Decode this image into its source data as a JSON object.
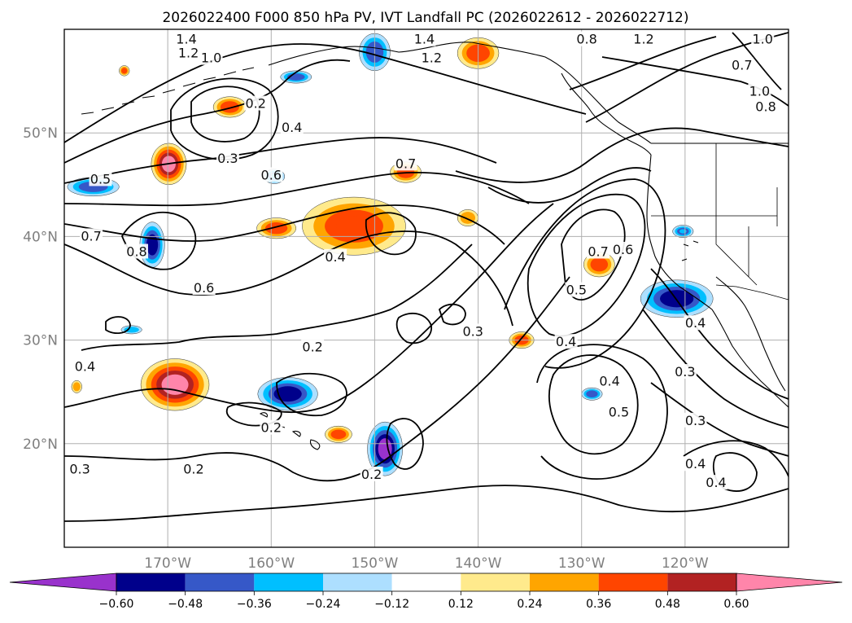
{
  "title": "2026022400 F000 850 hPa PV, IVT Landfall PC (2026022612 - 2026022712)",
  "map": {
    "lon_range": [
      -180,
      -110
    ],
    "lat_range": [
      10,
      60
    ],
    "lon_ticks": [
      {
        "value": -170,
        "label": "170°W"
      },
      {
        "value": -160,
        "label": "160°W"
      },
      {
        "value": -150,
        "label": "150°W"
      },
      {
        "value": -140,
        "label": "140°W"
      },
      {
        "value": -130,
        "label": "130°W"
      },
      {
        "value": -120,
        "label": "120°W"
      }
    ],
    "lat_ticks": [
      {
        "value": 20,
        "label": "20°N"
      },
      {
        "value": 30,
        "label": "30°N"
      },
      {
        "value": 40,
        "label": "40°N"
      },
      {
        "value": 50,
        "label": "50°N"
      }
    ],
    "gridlines": true,
    "colors": {
      "land_lines": "#000000",
      "contours": "#000000",
      "grid": "#b0b0b0"
    }
  },
  "contour_labels": [
    {
      "text": "1.4",
      "lon": -168.2,
      "lat": 59.0
    },
    {
      "text": "1.2",
      "lon": -168.0,
      "lat": 57.7
    },
    {
      "text": "1.0",
      "lon": -165.8,
      "lat": 57.2
    },
    {
      "text": "0.2",
      "lon": -161.5,
      "lat": 52.8
    },
    {
      "text": "0.4",
      "lon": -158.0,
      "lat": 50.5
    },
    {
      "text": "0.3",
      "lon": -164.2,
      "lat": 47.5
    },
    {
      "text": "0.6",
      "lon": -160.0,
      "lat": 45.9
    },
    {
      "text": "0.5",
      "lon": -176.5,
      "lat": 45.5
    },
    {
      "text": "0.7",
      "lon": -177.4,
      "lat": 40.0
    },
    {
      "text": "0.8",
      "lon": -173.0,
      "lat": 38.5
    },
    {
      "text": "0.6",
      "lon": -166.5,
      "lat": 35.0
    },
    {
      "text": "0.7",
      "lon": -147.0,
      "lat": 47.0
    },
    {
      "text": "0.4",
      "lon": -153.8,
      "lat": 38.0
    },
    {
      "text": "1.4",
      "lon": -145.2,
      "lat": 59.0
    },
    {
      "text": "1.2",
      "lon": -144.5,
      "lat": 57.2
    },
    {
      "text": "0.8",
      "lon": -129.5,
      "lat": 59.0
    },
    {
      "text": "1.2",
      "lon": -124.0,
      "lat": 59.0
    },
    {
      "text": "1.0",
      "lon": -112.5,
      "lat": 59.0
    },
    {
      "text": "0.7",
      "lon": -114.5,
      "lat": 56.5
    },
    {
      "text": "1.0",
      "lon": -112.8,
      "lat": 54.0
    },
    {
      "text": "0.8",
      "lon": -112.2,
      "lat": 52.5
    },
    {
      "text": "0.3",
      "lon": -140.5,
      "lat": 30.8
    },
    {
      "text": "0.2",
      "lon": -156.0,
      "lat": 29.3
    },
    {
      "text": "0.4",
      "lon": -131.5,
      "lat": 29.8
    },
    {
      "text": "0.5",
      "lon": -130.5,
      "lat": 34.8
    },
    {
      "text": "0.7",
      "lon": -128.4,
      "lat": 38.5
    },
    {
      "text": "0.6",
      "lon": -126.0,
      "lat": 38.7
    },
    {
      "text": "0.4",
      "lon": -119.0,
      "lat": 31.6
    },
    {
      "text": "0.3",
      "lon": -120.0,
      "lat": 26.9
    },
    {
      "text": "0.4",
      "lon": -127.3,
      "lat": 26.0
    },
    {
      "text": "0.5",
      "lon": -126.4,
      "lat": 23.0
    },
    {
      "text": "0.3",
      "lon": -119.0,
      "lat": 22.2
    },
    {
      "text": "0.4",
      "lon": -178.0,
      "lat": 27.4
    },
    {
      "text": "0.2",
      "lon": -160.0,
      "lat": 21.5
    },
    {
      "text": "0.2",
      "lon": -167.5,
      "lat": 17.5
    },
    {
      "text": "0.3",
      "lon": -178.5,
      "lat": 17.5
    },
    {
      "text": "0.2",
      "lon": -150.3,
      "lat": 17.0
    },
    {
      "text": "0.4",
      "lon": -119.0,
      "lat": 18.0
    },
    {
      "text": "0.4",
      "lon": -117.0,
      "lat": 16.2
    }
  ],
  "shaded_regions": [
    {
      "lon": -169.9,
      "lat": 47.0,
      "rx": 1.7,
      "ry": 2.0,
      "value": 0.62
    },
    {
      "lon": -164.0,
      "lat": 52.5,
      "rx": 1.6,
      "ry": 1.0,
      "value": 0.4
    },
    {
      "lon": -152.0,
      "lat": 41.0,
      "rx": 5.0,
      "ry": 2.8,
      "value": 0.47
    },
    {
      "lon": -147.0,
      "lat": 46.2,
      "rx": 1.5,
      "ry": 1.0,
      "value": 0.38
    },
    {
      "lon": -140.0,
      "lat": 57.7,
      "rx": 2.0,
      "ry": 1.5,
      "value": 0.45
    },
    {
      "lon": -159.5,
      "lat": 40.8,
      "rx": 1.9,
      "ry": 1.0,
      "value": 0.44
    },
    {
      "lon": -141.0,
      "lat": 41.8,
      "rx": 1.0,
      "ry": 0.8,
      "value": 0.35
    },
    {
      "lon": -128.3,
      "lat": 37.3,
      "rx": 1.5,
      "ry": 1.2,
      "value": 0.45
    },
    {
      "lon": -135.8,
      "lat": 30.0,
      "rx": 1.2,
      "ry": 0.8,
      "value": 0.4
    },
    {
      "lon": -169.3,
      "lat": 25.7,
      "rx": 3.3,
      "ry": 2.5,
      "value": 0.6
    },
    {
      "lon": -174.2,
      "lat": 56.0,
      "rx": 0.5,
      "ry": 0.5,
      "value": 0.4
    },
    {
      "lon": -178.8,
      "lat": 25.5,
      "rx": 0.5,
      "ry": 0.6,
      "value": 0.35
    },
    {
      "lon": -153.5,
      "lat": 20.9,
      "rx": 1.3,
      "ry": 0.8,
      "value": 0.4
    },
    {
      "lon": -171.5,
      "lat": 39.2,
      "rx": 1.2,
      "ry": 2.2,
      "value": -0.5
    },
    {
      "lon": -177.2,
      "lat": 44.8,
      "rx": 2.5,
      "ry": 0.9,
      "value": -0.38
    },
    {
      "lon": -159.7,
      "lat": 45.8,
      "rx": 1.0,
      "ry": 0.7,
      "value": -0.36
    },
    {
      "lon": -157.6,
      "lat": 55.4,
      "rx": 1.5,
      "ry": 0.6,
      "value": -0.38
    },
    {
      "lon": -150.0,
      "lat": 57.8,
      "rx": 1.5,
      "ry": 1.8,
      "value": -0.45
    },
    {
      "lon": -158.4,
      "lat": 24.8,
      "rx": 2.9,
      "ry": 1.6,
      "value": -0.55
    },
    {
      "lon": -149.0,
      "lat": 19.5,
      "rx": 1.7,
      "ry": 2.6,
      "value": -0.62
    },
    {
      "lon": -120.8,
      "lat": 34.0,
      "rx": 3.5,
      "ry": 1.8,
      "value": -0.52
    },
    {
      "lon": -129.0,
      "lat": 24.8,
      "rx": 1.0,
      "ry": 0.6,
      "value": -0.4
    },
    {
      "lon": -120.2,
      "lat": 40.5,
      "rx": 1.0,
      "ry": 0.6,
      "value": -0.36
    },
    {
      "lon": -173.5,
      "lat": 31.0,
      "rx": 1.0,
      "ry": 0.4,
      "value": -0.3
    }
  ],
  "colorbar": {
    "levels": [
      -0.6,
      -0.48,
      -0.36,
      -0.24,
      -0.12,
      0.12,
      0.24,
      0.36,
      0.48,
      0.6
    ],
    "tick_labels": [
      "−0.60",
      "−0.48",
      "−0.36",
      "−0.24",
      "−0.12",
      "0.12",
      "0.24",
      "0.36",
      "0.48",
      "0.60"
    ],
    "colors": [
      "#9932cc",
      "#00008b",
      "#3658c8",
      "#00bfff",
      "#addfff",
      "#ffffff",
      "#ffea8c",
      "#ffa500",
      "#ff4500",
      "#b22222",
      "#ff85aa"
    ],
    "extend": "both"
  }
}
